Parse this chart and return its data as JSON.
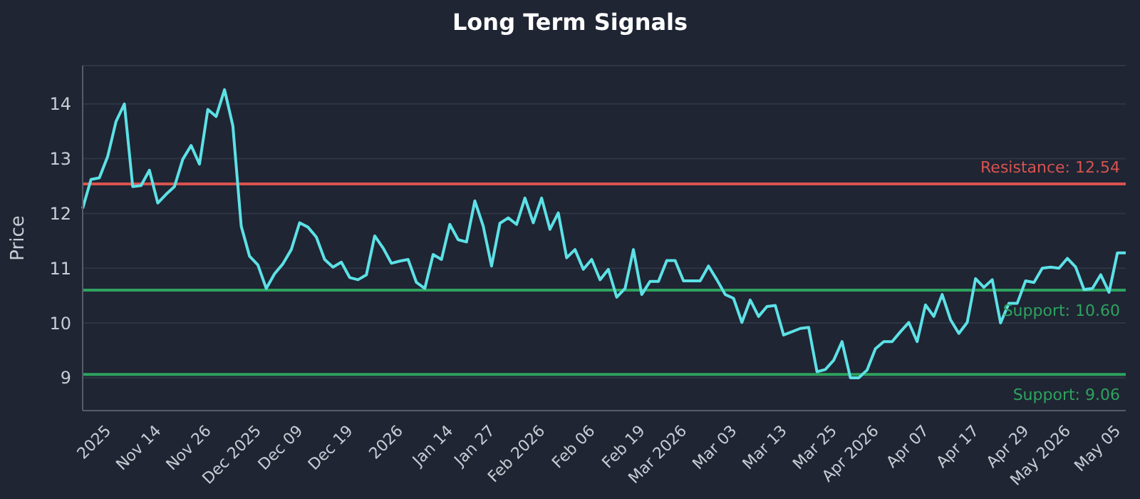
{
  "chart_data": {
    "type": "line",
    "title": "Long Term Signals",
    "ylabel": "Price",
    "categories": [
      null,
      null,
      null,
      "2025",
      null,
      null,
      null,
      null,
      null,
      "Nov 14",
      null,
      null,
      null,
      null,
      null,
      "Nov 26",
      null,
      null,
      null,
      null,
      null,
      "Dec 2025",
      null,
      null,
      null,
      null,
      "Dec 09",
      null,
      null,
      null,
      null,
      null,
      "Dec 19",
      null,
      null,
      null,
      null,
      null,
      "2026",
      null,
      null,
      null,
      null,
      null,
      "Jan 14",
      null,
      null,
      null,
      null,
      "Jan 27",
      null,
      null,
      null,
      null,
      null,
      "Feb 2026",
      null,
      null,
      null,
      null,
      null,
      "Feb 06",
      null,
      null,
      null,
      null,
      null,
      "Feb 19",
      null,
      null,
      null,
      null,
      "Mar 2026",
      null,
      null,
      null,
      null,
      null,
      "Mar 03",
      null,
      null,
      null,
      null,
      null,
      "Mar 13",
      null,
      null,
      null,
      null,
      null,
      "Mar 25",
      null,
      null,
      null,
      null,
      "Apr 2026",
      null,
      null,
      null,
      null,
      null,
      "Apr 07",
      null,
      null,
      null,
      null,
      null,
      "Apr 17",
      null,
      null,
      null,
      null,
      null,
      "Apr 29",
      null,
      null,
      null,
      null,
      "May 2026",
      null,
      null,
      null,
      null,
      null,
      "May 05",
      null
    ],
    "series": [
      {
        "color": "#5ce1e6",
        "values": [
          12.09,
          12.62,
          12.65,
          13.04,
          13.68,
          14.0,
          12.49,
          12.51,
          12.79,
          12.19,
          12.35,
          12.49,
          12.99,
          13.24,
          12.9,
          13.9,
          13.77,
          14.26,
          13.6,
          11.77,
          11.22,
          11.06,
          10.63,
          10.9,
          11.08,
          11.34,
          11.83,
          11.75,
          11.57,
          11.16,
          11.02,
          11.11,
          10.83,
          10.79,
          10.88,
          11.59,
          11.37,
          11.09,
          11.13,
          11.16,
          10.74,
          10.63,
          11.25,
          11.16,
          11.8,
          11.52,
          11.48,
          12.23,
          11.77,
          11.04,
          11.82,
          11.92,
          11.8,
          12.28,
          11.83,
          12.28,
          11.71,
          12.01,
          11.19,
          11.34,
          10.98,
          11.16,
          10.79,
          10.98,
          10.47,
          10.63,
          11.34,
          10.52,
          10.76,
          10.76,
          11.14,
          11.14,
          10.77,
          10.77,
          10.77,
          11.04,
          10.79,
          10.52,
          10.45,
          10.01,
          10.42,
          10.12,
          10.3,
          10.32,
          9.78,
          9.84,
          9.9,
          9.92,
          9.11,
          9.15,
          9.32,
          9.66,
          9.0,
          9.0,
          9.14,
          9.53,
          9.66,
          9.66,
          9.84,
          10.01,
          9.66,
          10.33,
          10.12,
          10.52,
          10.06,
          9.81,
          10.01,
          10.81,
          10.65,
          10.79,
          10.0,
          10.36,
          10.36,
          10.77,
          10.74,
          11.0,
          11.02,
          11.0,
          11.18,
          11.02,
          10.61,
          10.63,
          10.88,
          10.56,
          11.28,
          11.28
        ]
      }
    ],
    "ylim": [
      8.4,
      14.7
    ],
    "yticks": [
      9,
      10,
      11,
      12,
      13,
      14
    ],
    "grid": "y",
    "marker": "none",
    "line_style": "solid",
    "ref_lines": [
      {
        "axis": "y",
        "value": 12.54,
        "label": "Resistance: 12.54",
        "color": "#d9534f"
      },
      {
        "axis": "y",
        "value": 10.6,
        "label": "Support: 10.60",
        "color": "#2ea35f"
      },
      {
        "axis": "y",
        "value": 9.06,
        "label": "Support: 9.06",
        "color": "#2ea35f"
      }
    ]
  }
}
